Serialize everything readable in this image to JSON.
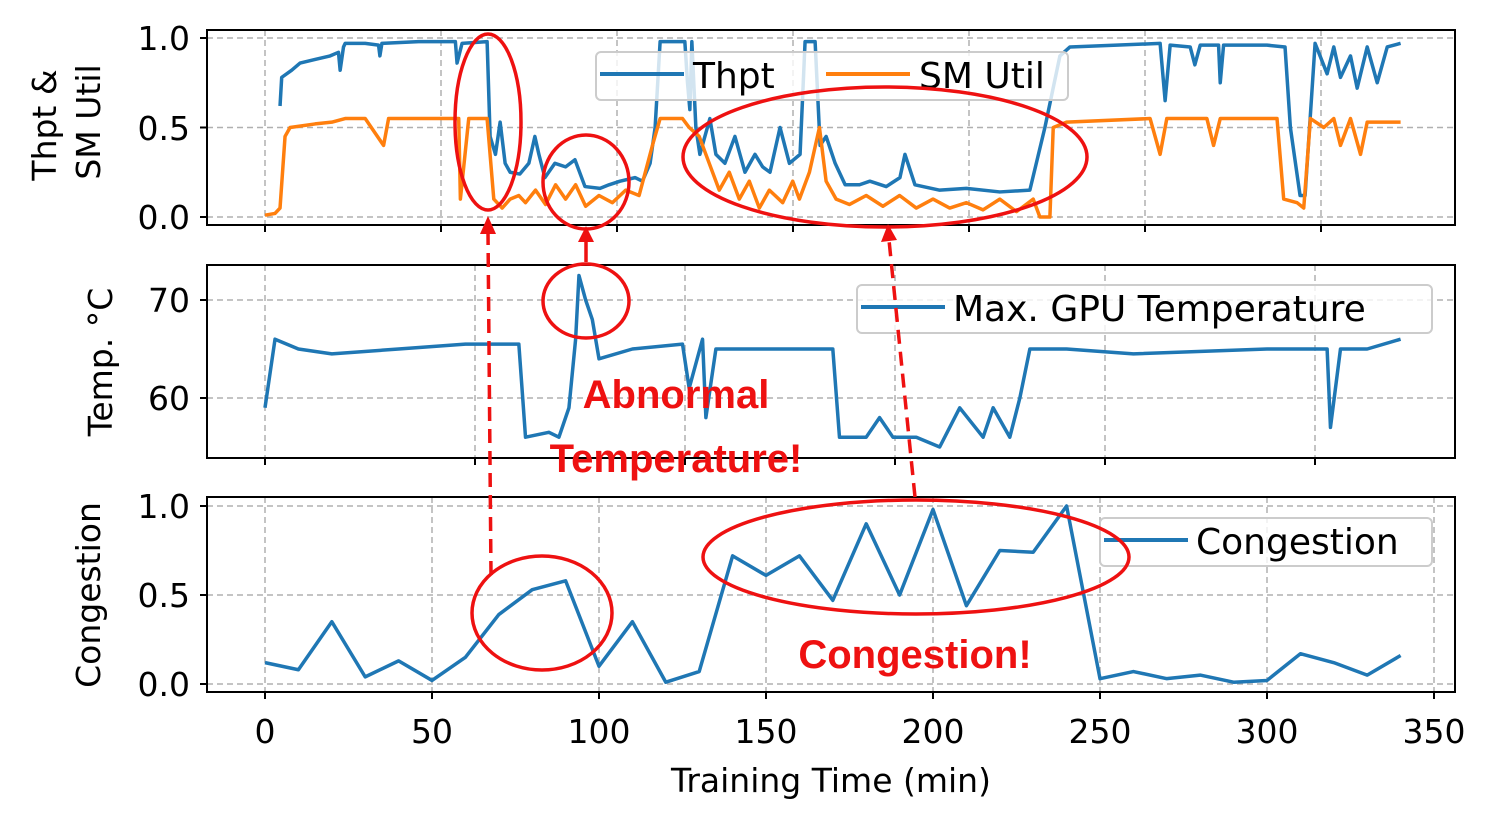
{
  "chart_data": [
    {
      "type": "line",
      "ylabel": "Thpt & SM Util",
      "ylabel_lines": [
        "Thpt &",
        "SM Util"
      ],
      "ylim": [
        0,
        1.0
      ],
      "yticks": [
        "0.0",
        "0.5",
        "1.0"
      ],
      "grid": true,
      "legend": "top-center",
      "series": [
        {
          "name": "Thpt",
          "color": "#1f77b4",
          "points": [
            [
              4.5,
              0.62
            ],
            [
              5,
              0.78
            ],
            [
              8,
              0.82
            ],
            [
              10.5,
              0.86
            ],
            [
              15,
              0.88
            ],
            [
              19.5,
              0.9
            ],
            [
              22,
              0.92
            ],
            [
              22.5,
              0.82
            ],
            [
              23.5,
              0.95
            ],
            [
              24,
              0.97
            ],
            [
              30,
              0.97
            ],
            [
              34,
              0.96
            ],
            [
              34.4,
              0.9
            ],
            [
              35,
              0.97
            ],
            [
              46,
              0.98
            ],
            [
              57,
              0.98
            ],
            [
              57.5,
              0.86
            ],
            [
              59,
              0.97
            ],
            [
              66.5,
              0.98
            ],
            [
              67.4,
              0.45
            ],
            [
              69,
              0.35
            ],
            [
              70.4,
              0.53
            ],
            [
              71.9,
              0.3
            ],
            [
              73.4,
              0.25
            ],
            [
              76.3,
              0.24
            ],
            [
              79,
              0.3
            ],
            [
              80.8,
              0.45
            ],
            [
              82,
              0.35
            ],
            [
              83.8,
              0.22
            ],
            [
              86.8,
              0.3
            ],
            [
              90,
              0.28
            ],
            [
              92.8,
              0.32
            ],
            [
              95.8,
              0.17
            ],
            [
              100.3,
              0.16
            ],
            [
              103,
              0.18
            ],
            [
              106.3,
              0.2
            ],
            [
              110.8,
              0.22
            ],
            [
              113,
              0.2
            ],
            [
              115.3,
              0.3
            ],
            [
              116.8,
              0.5
            ],
            [
              118.3,
              0.98
            ],
            [
              125.7,
              0.98
            ],
            [
              126.5,
              0.75
            ],
            [
              127.2,
              0.6
            ],
            [
              127.8,
              0.98
            ],
            [
              129,
              0.5
            ],
            [
              130.2,
              0.35
            ],
            [
              133.2,
              0.55
            ],
            [
              135,
              0.35
            ],
            [
              137.7,
              0.3
            ],
            [
              140.7,
              0.45
            ],
            [
              143.7,
              0.25
            ],
            [
              146.7,
              0.35
            ],
            [
              149,
              0.28
            ],
            [
              151.2,
              0.25
            ],
            [
              154.2,
              0.5
            ],
            [
              157,
              0.3
            ],
            [
              160.2,
              0.35
            ],
            [
              161.7,
              0.98
            ],
            [
              164.7,
              0.98
            ],
            [
              166.2,
              0.4
            ],
            [
              168,
              0.45
            ],
            [
              170.7,
              0.3
            ],
            [
              173.7,
              0.18
            ],
            [
              178,
              0.18
            ],
            [
              181.1,
              0.2
            ],
            [
              186,
              0.17
            ],
            [
              190.1,
              0.22
            ],
            [
              191.6,
              0.35
            ],
            [
              194.6,
              0.18
            ],
            [
              202,
              0.15
            ],
            [
              210,
              0.16
            ],
            [
              220,
              0.14
            ],
            [
              229,
              0.15
            ],
            [
              233.5,
              0.5
            ],
            [
              238,
              0.9
            ],
            [
              241,
              0.95
            ],
            [
              255,
              0.96
            ],
            [
              268,
              0.97
            ],
            [
              269.5,
              0.65
            ],
            [
              271,
              0.96
            ],
            [
              277,
              0.95
            ],
            [
              278.4,
              0.85
            ],
            [
              280,
              0.96
            ],
            [
              285.5,
              0.96
            ],
            [
              286,
              0.75
            ],
            [
              287,
              0.96
            ],
            [
              300,
              0.96
            ],
            [
              305.4,
              0.95
            ],
            [
              307,
              0.5
            ],
            [
              309.9,
              0.12
            ],
            [
              311.4,
              0.12
            ],
            [
              314.4,
              0.97
            ],
            [
              318,
              0.8
            ],
            [
              320,
              0.95
            ],
            [
              322,
              0.78
            ],
            [
              325,
              0.9
            ],
            [
              327,
              0.72
            ],
            [
              330,
              0.95
            ],
            [
              333,
              0.75
            ],
            [
              336,
              0.95
            ],
            [
              340,
              0.97
            ]
          ]
        },
        {
          "name": "SM Util",
          "color": "#ff7f0e",
          "points": [
            [
              0,
              0.01
            ],
            [
              3,
              0.02
            ],
            [
              4.5,
              0.05
            ],
            [
              6,
              0.45
            ],
            [
              7.5,
              0.5
            ],
            [
              15,
              0.52
            ],
            [
              20,
              0.53
            ],
            [
              24,
              0.55
            ],
            [
              30,
              0.55
            ],
            [
              35.5,
              0.4
            ],
            [
              37,
              0.55
            ],
            [
              58,
              0.55
            ],
            [
              58.5,
              0.1
            ],
            [
              61,
              0.55
            ],
            [
              66.5,
              0.55
            ],
            [
              68.5,
              0.1
            ],
            [
              71,
              0.05
            ],
            [
              73.4,
              0.1
            ],
            [
              76,
              0.12
            ],
            [
              78,
              0.08
            ],
            [
              81,
              0.15
            ],
            [
              84,
              0.07
            ],
            [
              87,
              0.18
            ],
            [
              90,
              0.1
            ],
            [
              93,
              0.18
            ],
            [
              96,
              0.06
            ],
            [
              100,
              0.12
            ],
            [
              104,
              0.08
            ],
            [
              108,
              0.15
            ],
            [
              112,
              0.12
            ],
            [
              116,
              0.4
            ],
            [
              118.3,
              0.55
            ],
            [
              125,
              0.55
            ],
            [
              127,
              0.5
            ],
            [
              130,
              0.45
            ],
            [
              133,
              0.3
            ],
            [
              136,
              0.15
            ],
            [
              139,
              0.25
            ],
            [
              142,
              0.1
            ],
            [
              145,
              0.2
            ],
            [
              148,
              0.05
            ],
            [
              151,
              0.15
            ],
            [
              155,
              0.08
            ],
            [
              158,
              0.2
            ],
            [
              160,
              0.1
            ],
            [
              163,
              0.25
            ],
            [
              166,
              0.5
            ],
            [
              168,
              0.2
            ],
            [
              171,
              0.1
            ],
            [
              175,
              0.07
            ],
            [
              180,
              0.12
            ],
            [
              185,
              0.06
            ],
            [
              190,
              0.12
            ],
            [
              195,
              0.05
            ],
            [
              200,
              0.1
            ],
            [
              205,
              0.05
            ],
            [
              210,
              0.08
            ],
            [
              215,
              0.04
            ],
            [
              220,
              0.1
            ],
            [
              225,
              0.03
            ],
            [
              230,
              0.1
            ],
            [
              232,
              0.0
            ],
            [
              235,
              0.0
            ],
            [
              236,
              0.5
            ],
            [
              240,
              0.53
            ],
            [
              265,
              0.55
            ],
            [
              268,
              0.35
            ],
            [
              270,
              0.55
            ],
            [
              282,
              0.55
            ],
            [
              284,
              0.4
            ],
            [
              286,
              0.55
            ],
            [
              303,
              0.55
            ],
            [
              305,
              0.1
            ],
            [
              309,
              0.08
            ],
            [
              311,
              0.05
            ],
            [
              313,
              0.55
            ],
            [
              317,
              0.5
            ],
            [
              320,
              0.55
            ],
            [
              322,
              0.4
            ],
            [
              325,
              0.55
            ],
            [
              328,
              0.35
            ],
            [
              330,
              0.53
            ],
            [
              340,
              0.53
            ]
          ]
        }
      ]
    },
    {
      "type": "line",
      "ylabel": "Temp. °C",
      "ylim": [
        54,
        74
      ],
      "yticks": [
        "60",
        "70"
      ],
      "grid": true,
      "legend": "top-right",
      "series": [
        {
          "name": "Max. GPU Temperature",
          "color": "#1f77b4",
          "points": [
            [
              0,
              59
            ],
            [
              3,
              66
            ],
            [
              10,
              65
            ],
            [
              20,
              64.5
            ],
            [
              40,
              65
            ],
            [
              60,
              65.5
            ],
            [
              76,
              65.5
            ],
            [
              78,
              56
            ],
            [
              85,
              56.5
            ],
            [
              88,
              56
            ],
            [
              91,
              59
            ],
            [
              93,
              66
            ],
            [
              94,
              72.5
            ],
            [
              96,
              70
            ],
            [
              98,
              68
            ],
            [
              100,
              64
            ],
            [
              110,
              65
            ],
            [
              125,
              65.5
            ],
            [
              127,
              61
            ],
            [
              131,
              66
            ],
            [
              132,
              58
            ],
            [
              135,
              65
            ],
            [
              150,
              65
            ],
            [
              170,
              65
            ],
            [
              172,
              56
            ],
            [
              180,
              56
            ],
            [
              184,
              58
            ],
            [
              188,
              56
            ],
            [
              195,
              56
            ],
            [
              202,
              55
            ],
            [
              208,
              59
            ],
            [
              215,
              56
            ],
            [
              218,
              59
            ],
            [
              223,
              56
            ],
            [
              226,
              60
            ],
            [
              229,
              65
            ],
            [
              240,
              65
            ],
            [
              260,
              64.5
            ],
            [
              300,
              65
            ],
            [
              318,
              65
            ],
            [
              319,
              57
            ],
            [
              322,
              65
            ],
            [
              330,
              65
            ],
            [
              340,
              66
            ]
          ]
        }
      ]
    },
    {
      "type": "line",
      "ylabel": "Congestion",
      "xlabel": "Training Time (min)",
      "xlim": [
        -15,
        355
      ],
      "ylim": [
        -0.05,
        1.05
      ],
      "xticks": [
        "0",
        "50",
        "100",
        "150",
        "200",
        "250",
        "300",
        "350"
      ],
      "yticks": [
        "0.0",
        "0.5",
        "1.0"
      ],
      "grid": true,
      "legend": "top-right",
      "series": [
        {
          "name": "Congestion",
          "color": "#1f77b4",
          "x": [
            0,
            10,
            20,
            30,
            40,
            50,
            60,
            70,
            80,
            90,
            100,
            110,
            120,
            130,
            140,
            150,
            160,
            170,
            180,
            190,
            200,
            210,
            220,
            230,
            240,
            250,
            260,
            270,
            280,
            290,
            300,
            310,
            320,
            330,
            340
          ],
          "y": [
            0.12,
            0.08,
            0.35,
            0.04,
            0.13,
            0.02,
            0.15,
            0.39,
            0.53,
            0.58,
            0.1,
            0.35,
            0.01,
            0.07,
            0.72,
            0.61,
            0.72,
            0.47,
            0.9,
            0.5,
            0.98,
            0.44,
            0.75,
            0.74,
            1.0,
            0.03,
            0.07,
            0.03,
            0.05,
            0.01,
            0.02,
            0.17,
            0.12,
            0.05,
            0.16
          ]
        }
      ]
    }
  ],
  "annotations": {
    "abnormal_1": "Abnormal",
    "abnormal_2": "Temperature!",
    "congestion": "Congestion!",
    "color": "#ee1111"
  }
}
